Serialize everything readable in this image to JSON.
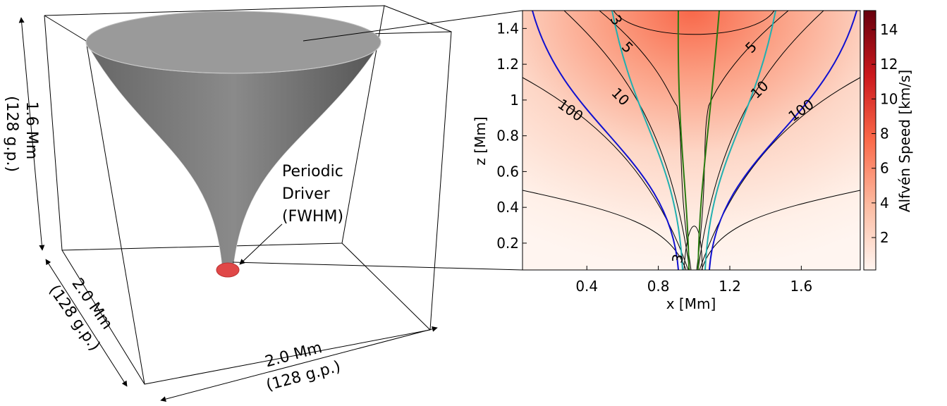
{
  "diagram": {
    "driver_label": [
      "Periodic",
      "Driver",
      "(FWHM)"
    ],
    "height_label": [
      "1.6 Mm",
      "(128 g.p.)"
    ],
    "depth_label": [
      "2.0 Mm",
      "(128 g.p.)"
    ],
    "width_label": [
      "2.0 Mm",
      "(128 g.p.)"
    ]
  },
  "chart_data": {
    "type": "contour",
    "xlabel": "x [Mm]",
    "ylabel": "z [Mm]",
    "xlim": [
      0.04,
      1.93
    ],
    "ylim": [
      0.05,
      1.5
    ],
    "xticks": [
      0.4,
      0.8,
      1.2,
      1.6
    ],
    "yticks": [
      0.2,
      0.4,
      0.6,
      0.8,
      1.0,
      1.2,
      1.4
    ],
    "colorbar": {
      "label": "Alfvén Speed [km/s]",
      "lim": [
        0.13,
        15.1
      ],
      "ticks": [
        2,
        4,
        6,
        8,
        10,
        12,
        14
      ]
    },
    "contour_labels": [
      3,
      5,
      5,
      10,
      10,
      100,
      100,
      3
    ]
  }
}
